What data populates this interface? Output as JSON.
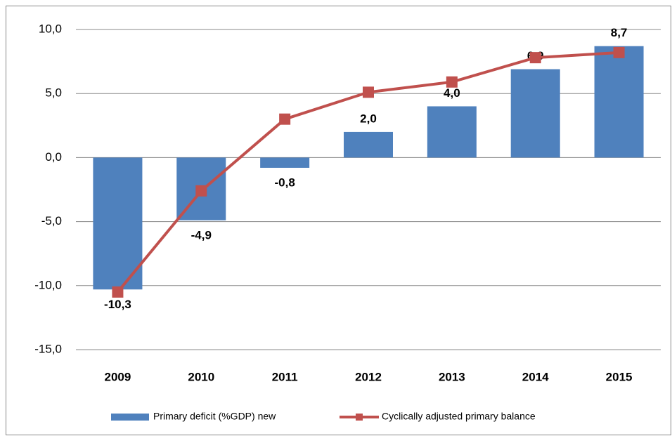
{
  "chart_data": {
    "type": "bar",
    "categories": [
      "2009",
      "2010",
      "2011",
      "2012",
      "2013",
      "2014",
      "2015"
    ],
    "series": [
      {
        "name": "Primary deficit (%GDP) new",
        "type": "bar",
        "color": "#4f81bd",
        "values": [
          -10.3,
          -4.9,
          -0.8,
          2.0,
          4.0,
          6.9,
          8.7
        ],
        "value_labels": [
          "-10,3",
          "-4,9",
          "-0,8",
          "2,0",
          "4,0",
          "6,9",
          "8,7"
        ]
      },
      {
        "name": "Cyclically adjusted primary balance",
        "type": "line",
        "color": "#c0504d",
        "values": [
          -10.5,
          -2.6,
          3.0,
          5.1,
          5.9,
          7.8,
          8.2
        ]
      }
    ],
    "ylim": [
      -15,
      10
    ],
    "yticks": [
      {
        "value": 10,
        "label": "10,0"
      },
      {
        "value": 5,
        "label": "5,0"
      },
      {
        "value": 0,
        "label": "0,0"
      },
      {
        "value": -5,
        "label": "-5,0"
      },
      {
        "value": -10,
        "label": "-10,0"
      },
      {
        "value": -15,
        "label": "-15,0"
      }
    ],
    "grid": true,
    "legend": "bottom"
  }
}
